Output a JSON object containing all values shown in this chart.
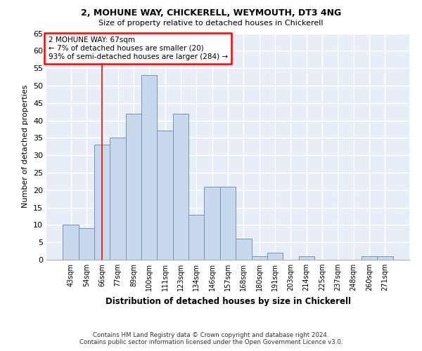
{
  "title1": "2, MOHUNE WAY, CHICKERELL, WEYMOUTH, DT3 4NG",
  "title2": "Size of property relative to detached houses in Chickerell",
  "xlabel": "Distribution of detached houses by size in Chickerell",
  "ylabel": "Number of detached properties",
  "footer1": "Contains HM Land Registry data © Crown copyright and database right 2024.",
  "footer2": "Contains public sector information licensed under the Open Government Licence v3.0.",
  "categories": [
    "43sqm",
    "54sqm",
    "66sqm",
    "77sqm",
    "89sqm",
    "100sqm",
    "111sqm",
    "123sqm",
    "134sqm",
    "146sqm",
    "157sqm",
    "168sqm",
    "180sqm",
    "191sqm",
    "203sqm",
    "214sqm",
    "225sqm",
    "237sqm",
    "248sqm",
    "260sqm",
    "271sqm"
  ],
  "values": [
    10,
    9,
    33,
    35,
    42,
    53,
    37,
    42,
    13,
    21,
    21,
    6,
    1,
    2,
    0,
    1,
    0,
    0,
    0,
    1,
    1
  ],
  "bar_color": "#c9d9ed",
  "bar_edge_color": "#7096b5",
  "property_line_x": 2,
  "annotation_title": "2 MOHUNE WAY: 67sqm",
  "annotation_line1": "← 7% of detached houses are smaller (20)",
  "annotation_line2": "93% of semi-detached houses are larger (284) →",
  "annotation_box_color": "white",
  "annotation_box_edge_color": "red",
  "vline_color": "red",
  "ylim": [
    0,
    65
  ],
  "yticks": [
    0,
    5,
    10,
    15,
    20,
    25,
    30,
    35,
    40,
    45,
    50,
    55,
    60,
    65
  ],
  "fig_bg_color": "#ffffff",
  "plot_bg_color": "#e8eef7",
  "grid_color": "#ffffff"
}
